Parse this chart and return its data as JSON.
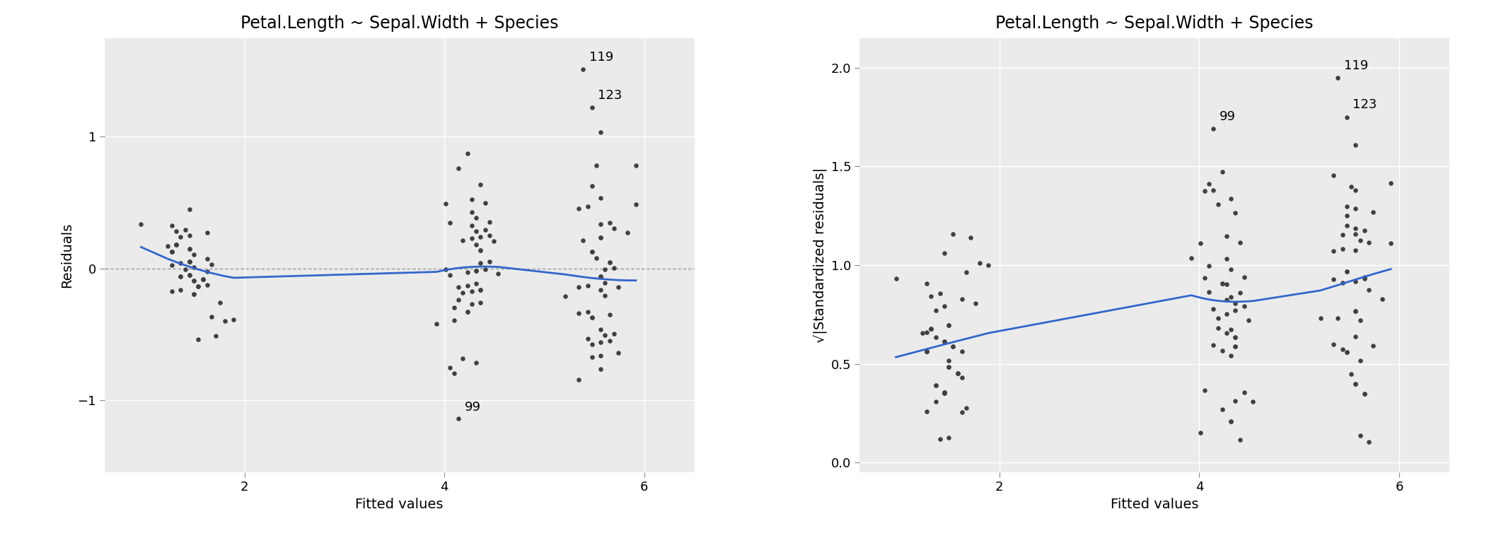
{
  "title": "Petal.Length ~ Sepal.Width + Species",
  "plot1_xlabel": "Fitted values",
  "plot1_ylabel": "Residuals",
  "plot2_xlabel": "Fitted values",
  "plot2_ylabel": "√|Standardized residuals|",
  "bg_color": "#EBEBEB",
  "point_color": "#404040",
  "line_color": "#3366CC",
  "dashed_color": "#999999",
  "grid_color": "#FFFFFF",
  "plot1_ylim": [
    -1.55,
    1.75
  ],
  "plot1_yticks": [
    -1,
    0,
    1
  ],
  "plot2_ylim": [
    -0.05,
    2.15
  ],
  "plot2_yticks": [
    0.0,
    0.5,
    1.0,
    1.5,
    2.0
  ],
  "xlim": [
    0.6,
    6.5
  ],
  "xticks": [
    2,
    4,
    6
  ],
  "annotation_fontsize": 13,
  "title_fontsize": 17,
  "axis_label_fontsize": 14,
  "tick_fontsize": 13
}
